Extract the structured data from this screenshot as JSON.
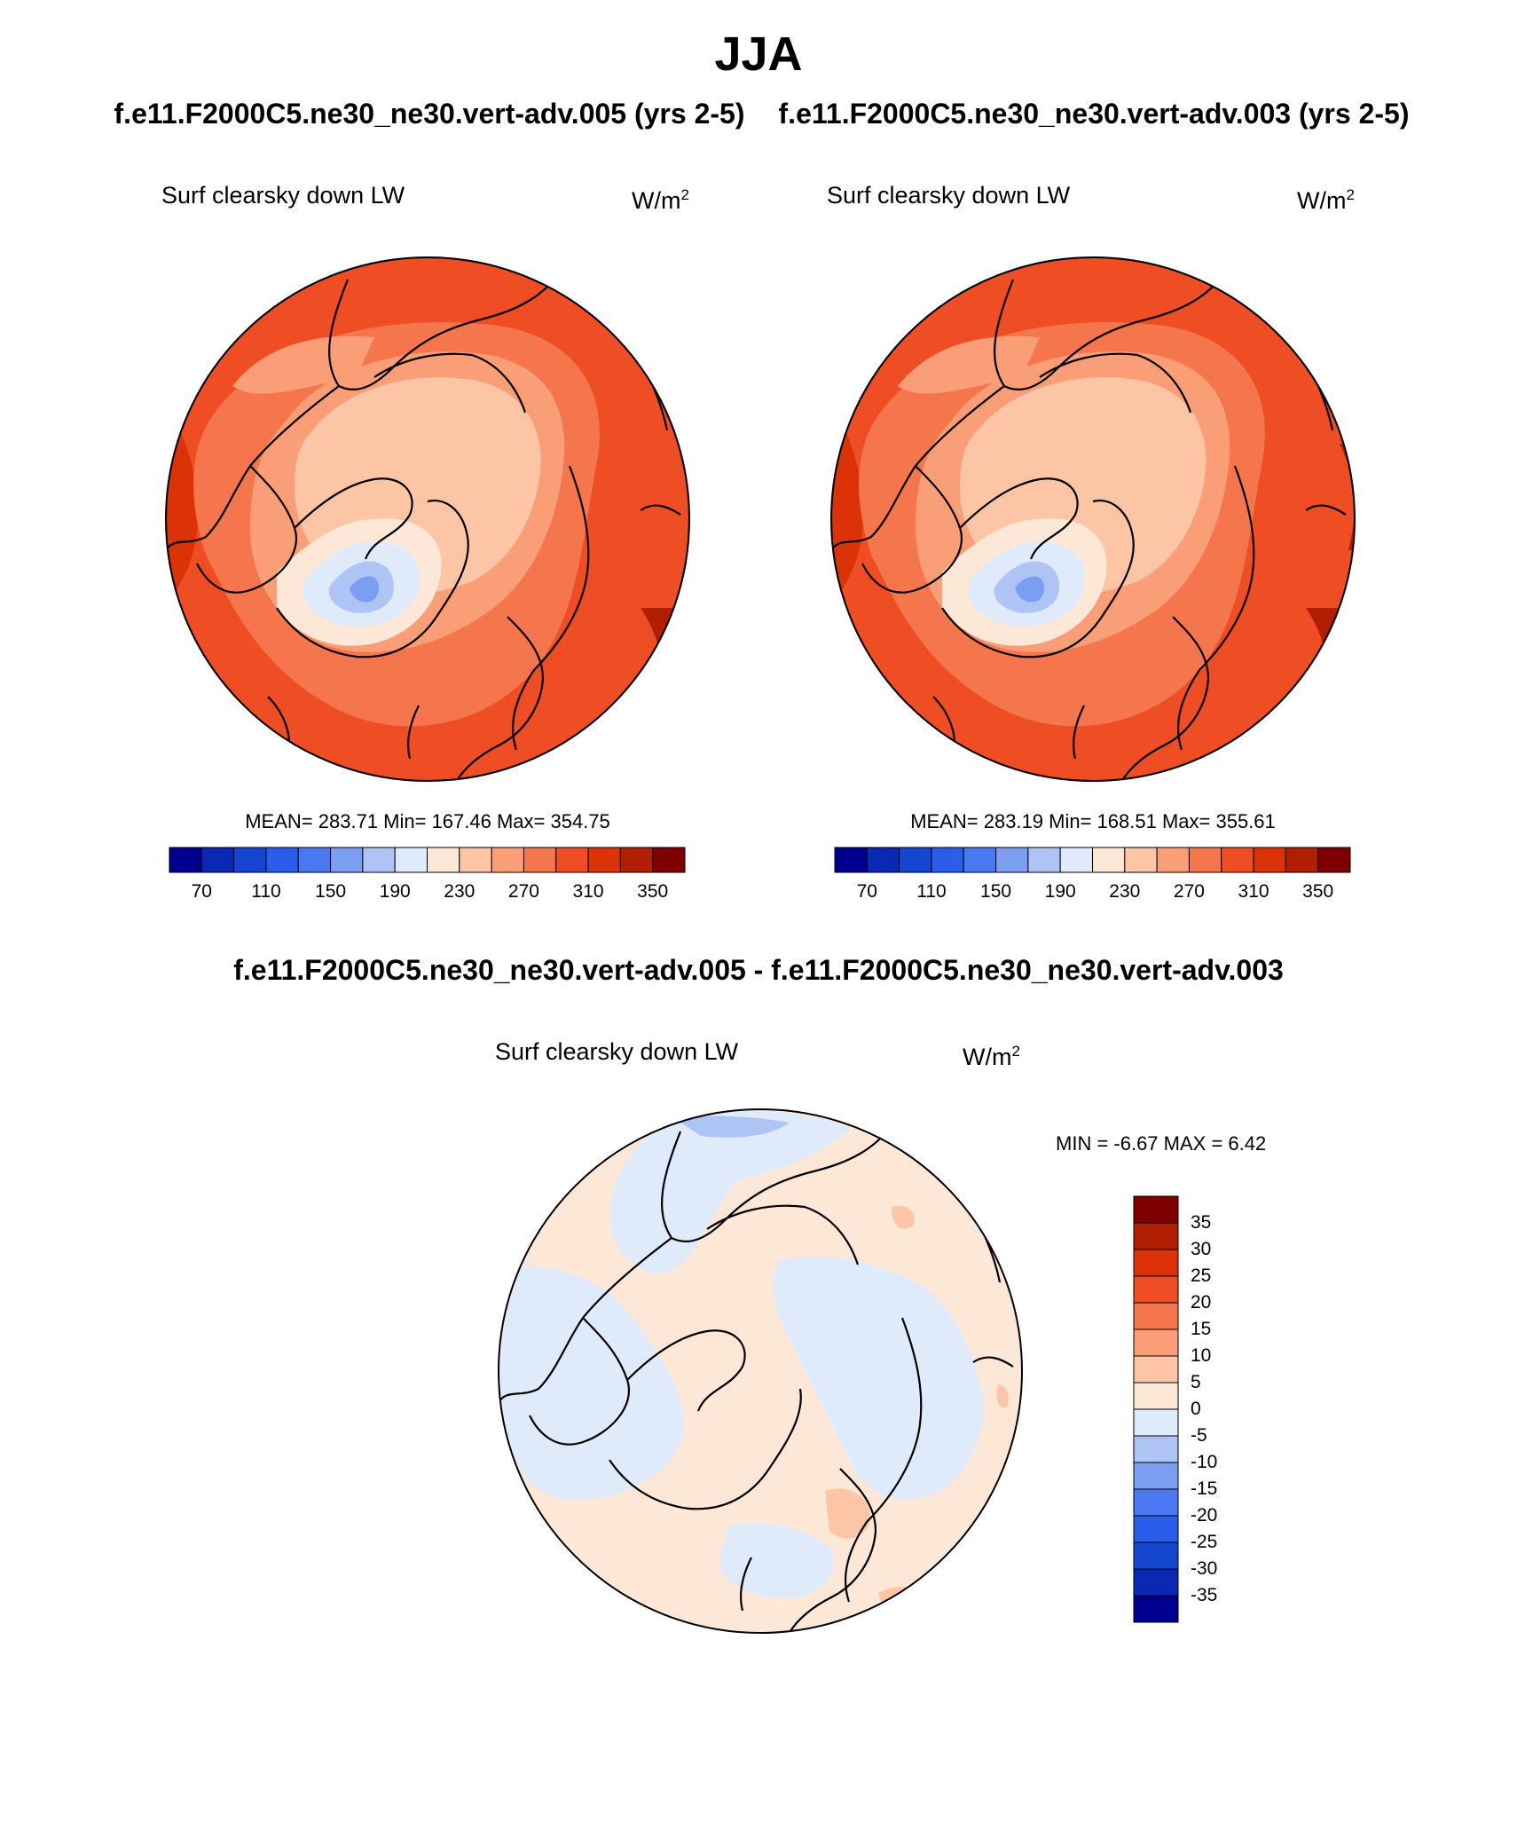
{
  "title": "JJA",
  "panels": [
    {
      "id": "case1",
      "title": "f.e11.F2000C5.ne30_ne30.vert-adv.005 (yrs 2-5)",
      "variable": "Surf clearsky down LW",
      "units_base": "W/m",
      "units_exp": "2",
      "stats": "MEAN= 283.71  Min= 167.46  Max= 354.75"
    },
    {
      "id": "case2",
      "title": "f.e11.F2000C5.ne30_ne30.vert-adv.003 (yrs 2-5)",
      "variable": "Surf clearsky down LW",
      "units_base": "W/m",
      "units_exp": "2",
      "stats": "MEAN= 283.19  Min= 168.51  Max= 355.61"
    }
  ],
  "difference": {
    "title": "f.e11.F2000C5.ne30_ne30.vert-adv.005 - f.e11.F2000C5.ne30_ne30.vert-adv.003",
    "variable": "Surf clearsky down LW",
    "units_base": "W/m",
    "units_exp": "2",
    "stats": "MIN =  -6.67 MAX =   6.42"
  },
  "colorbar_abs": {
    "colors": [
      "#00008e",
      "#0a28b4",
      "#1446d2",
      "#2a5eea",
      "#4a78f0",
      "#7c9ef2",
      "#aec4f4",
      "#dfeafa",
      "#fde8d8",
      "#fcc6a6",
      "#fa9e78",
      "#f5764c",
      "#ef4e24",
      "#db3208",
      "#b11e02",
      "#7e0000"
    ],
    "labels": [
      "70",
      "110",
      "150",
      "190",
      "230",
      "270",
      "310",
      "350"
    ]
  },
  "colorbar_diff": {
    "colors": [
      "#7e0000",
      "#b11e02",
      "#db3208",
      "#ef4e24",
      "#f5764c",
      "#fa9e78",
      "#fcc6a6",
      "#fde8d8",
      "#dfeafa",
      "#aec4f4",
      "#7c9ef2",
      "#4a78f0",
      "#2a5eea",
      "#1446d2",
      "#0a28b4",
      "#00008e"
    ],
    "labels": [
      "35",
      "30",
      "25",
      "20",
      "15",
      "10",
      "5",
      "0",
      "-5",
      "-10",
      "-15",
      "-20",
      "-25",
      "-30",
      "-35"
    ]
  }
}
